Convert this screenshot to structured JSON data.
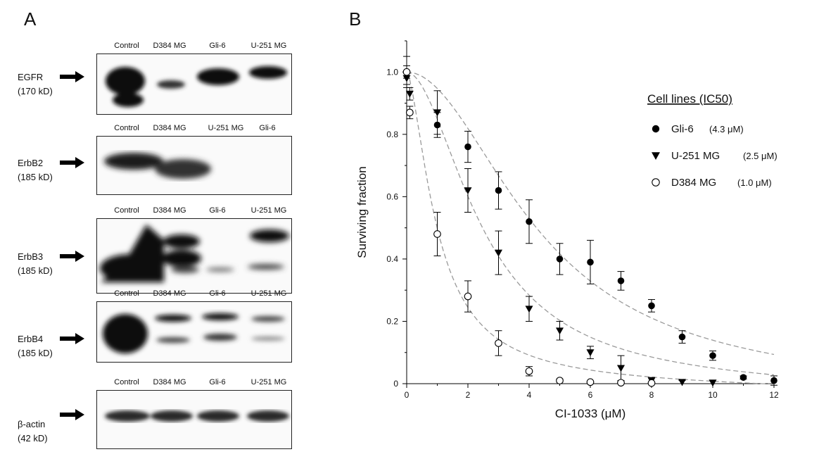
{
  "panel_a": {
    "letter": "A",
    "blots": [
      {
        "protein": "EGFR",
        "size": "(170 kD)",
        "lanes": [
          "Control",
          "D384 MG",
          "Gli-6",
          "U-251 MG"
        ]
      },
      {
        "protein": "ErbB2",
        "size": "(185 kD)",
        "lanes": [
          "Control",
          "D384 MG",
          "U-251 MG",
          "Gli-6"
        ]
      },
      {
        "protein": "ErbB3",
        "size": "(185 kD)",
        "lanes": [
          "Control",
          "D384 MG",
          "Gli-6",
          "U-251 MG"
        ]
      },
      {
        "protein": "ErbB4",
        "size": "(185 kD)",
        "lanes": [
          "Control",
          "D384 MG",
          "Gli-6",
          "U-251 MG"
        ]
      },
      {
        "protein": "β-actin",
        "size": "(42 kD)",
        "lanes": [
          "Control",
          "D384 MG",
          "Gli-6",
          "U-251 MG"
        ]
      }
    ]
  },
  "panel_b": {
    "letter": "B",
    "legend": {
      "title": "Cell lines (IC50)",
      "entries": [
        {
          "name": "Gli-6",
          "ic50": "(4.3 μM)",
          "marker": "filled-circle"
        },
        {
          "name": "U-251 MG",
          "ic50": "(2.5 μM)",
          "marker": "filled-triangle-down"
        },
        {
          "name": "D384 MG",
          "ic50": "(1.0 μM)",
          "marker": "open-circle"
        }
      ]
    }
  },
  "chart_data": {
    "type": "scatter",
    "xlabel": "CI-1033 (μM)",
    "ylabel": "Surviving fraction",
    "xlim": [
      0,
      12
    ],
    "ylim": [
      0,
      1.1
    ],
    "xticks": [
      0,
      2,
      4,
      6,
      8,
      10,
      12
    ],
    "yticks": [
      0,
      0.2,
      0.4,
      0.6,
      0.8,
      1.0
    ],
    "ytick_labels": [
      "0",
      "0.2",
      "0.4",
      "0.6",
      "0.8",
      "1.0"
    ],
    "grid": false,
    "legend_position": "top-right",
    "series": [
      {
        "name": "Gli-6",
        "marker": "filled-circle",
        "x": [
          0,
          1,
          2,
          3,
          4,
          5,
          6,
          7,
          8,
          9,
          10,
          11,
          12
        ],
        "y": [
          1.0,
          0.83,
          0.76,
          0.62,
          0.52,
          0.4,
          0.39,
          0.33,
          0.25,
          0.15,
          0.09,
          0.02,
          0.01
        ],
        "err": [
          0.05,
          0.04,
          0.05,
          0.06,
          0.07,
          0.05,
          0.07,
          0.03,
          0.02,
          0.02,
          0.015,
          0.005,
          0.015
        ],
        "fit_ic50": 4.3
      },
      {
        "name": "U-251 MG",
        "marker": "filled-triangle-down",
        "x": [
          0,
          0.1,
          1,
          2,
          3,
          4,
          5,
          6,
          7,
          8,
          9,
          10
        ],
        "y": [
          0.98,
          0.93,
          0.87,
          0.62,
          0.42,
          0.24,
          0.17,
          0.1,
          0.05,
          0.01,
          0.005,
          0.003
        ],
        "err": [
          0.02,
          0.02,
          0.07,
          0.07,
          0.07,
          0.04,
          0.03,
          0.02,
          0.04,
          0.01,
          0.005,
          0.003
        ],
        "fit_ic50": 2.5
      },
      {
        "name": "D384 MG",
        "marker": "open-circle",
        "x": [
          0,
          0.1,
          1,
          2,
          3,
          4,
          5,
          6,
          7,
          8
        ],
        "y": [
          1.0,
          0.87,
          0.48,
          0.28,
          0.13,
          0.04,
          0.01,
          0.005,
          0.003,
          0.002
        ],
        "err": [
          0.02,
          0.02,
          0.07,
          0.05,
          0.04,
          0.015,
          0.005,
          0.003,
          0.003,
          0.002
        ],
        "fit_ic50": 1.0
      }
    ]
  }
}
